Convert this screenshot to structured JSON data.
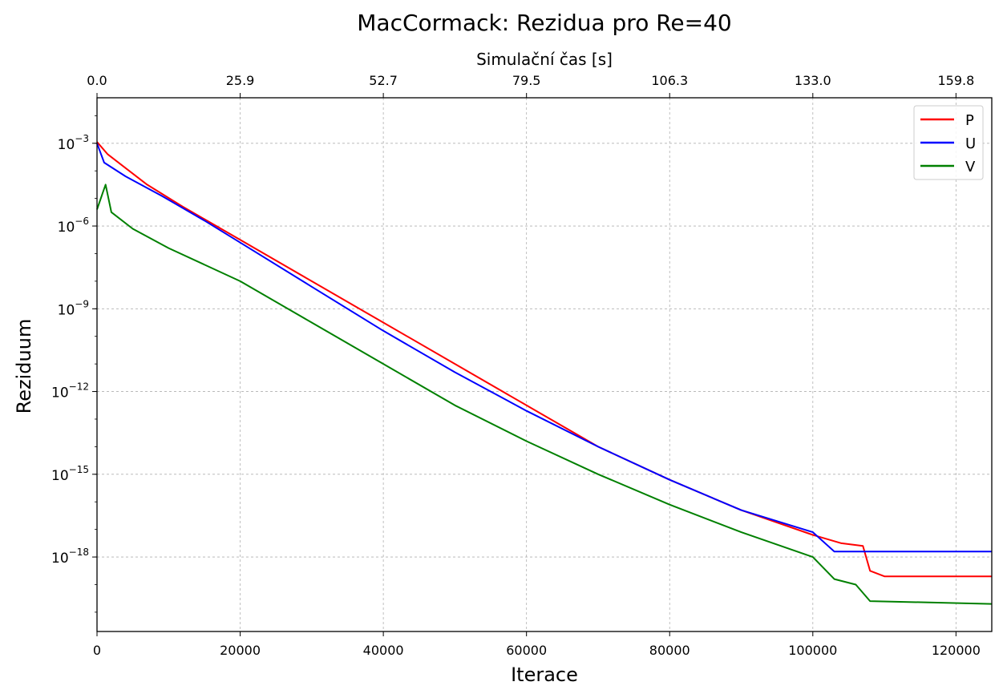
{
  "chart_data": {
    "type": "line",
    "title": "MacCormack: Rezidua pro Re=40",
    "xlabel": "Iterace",
    "ylabel": "Reziduum",
    "top_xlabel": "Simulační čas [s]",
    "xlim": [
      0,
      125000
    ],
    "y_scale": "log",
    "ylim_log10": [
      -20.7,
      -1.35
    ],
    "grid": true,
    "legend_position": "top-right",
    "x_ticks": [
      {
        "value": 0,
        "label": "0"
      },
      {
        "value": 20000,
        "label": "20000"
      },
      {
        "value": 40000,
        "label": "40000"
      },
      {
        "value": 60000,
        "label": "60000"
      },
      {
        "value": 80000,
        "label": "80000"
      },
      {
        "value": 100000,
        "label": "100000"
      },
      {
        "value": 120000,
        "label": "120000"
      }
    ],
    "top_x_ticks": [
      {
        "value": 0,
        "label": "0.0"
      },
      {
        "value": 20000,
        "label": "25.9"
      },
      {
        "value": 40000,
        "label": "52.7"
      },
      {
        "value": 60000,
        "label": "79.5"
      },
      {
        "value": 80000,
        "label": "106.3"
      },
      {
        "value": 100000,
        "label": "133.0"
      },
      {
        "value": 120000,
        "label": "159.8"
      }
    ],
    "y_ticks": [
      {
        "exp": -3,
        "base": "10",
        "sup": "−3"
      },
      {
        "exp": -6,
        "base": "10",
        "sup": "−6"
      },
      {
        "exp": -9,
        "base": "10",
        "sup": "−9"
      },
      {
        "exp": -12,
        "base": "10",
        "sup": "−12"
      },
      {
        "exp": -15,
        "base": "10",
        "sup": "−15"
      },
      {
        "exp": -18,
        "base": "10",
        "sup": "−18"
      }
    ],
    "series": [
      {
        "name": "P",
        "color": "#ff0000",
        "points": [
          [
            0,
            -2.95
          ],
          [
            1500,
            -3.4
          ],
          [
            3500,
            -3.8
          ],
          [
            7000,
            -4.5
          ],
          [
            12000,
            -5.3
          ],
          [
            20000,
            -6.5
          ],
          [
            30000,
            -8.0
          ],
          [
            40000,
            -9.5
          ],
          [
            50000,
            -11.0
          ],
          [
            60000,
            -12.5
          ],
          [
            70000,
            -14.0
          ],
          [
            80000,
            -15.2
          ],
          [
            90000,
            -16.3
          ],
          [
            100000,
            -17.2
          ],
          [
            104000,
            -17.5
          ],
          [
            107000,
            -17.6
          ],
          [
            108000,
            -18.5
          ],
          [
            110000,
            -18.7
          ],
          [
            125000,
            -18.7
          ]
        ]
      },
      {
        "name": "U",
        "color": "#0000ff",
        "points": [
          [
            0,
            -3.0
          ],
          [
            1000,
            -3.7
          ],
          [
            4000,
            -4.2
          ],
          [
            9000,
            -4.9
          ],
          [
            15000,
            -5.8
          ],
          [
            20000,
            -6.6
          ],
          [
            30000,
            -8.2
          ],
          [
            40000,
            -9.8
          ],
          [
            50000,
            -11.3
          ],
          [
            60000,
            -12.7
          ],
          [
            70000,
            -14.0
          ],
          [
            80000,
            -15.2
          ],
          [
            90000,
            -16.3
          ],
          [
            100000,
            -17.1
          ],
          [
            103000,
            -17.8
          ],
          [
            125000,
            -17.8
          ]
        ]
      },
      {
        "name": "V",
        "color": "#008000",
        "points": [
          [
            0,
            -5.4
          ],
          [
            800,
            -4.8
          ],
          [
            1200,
            -4.5
          ],
          [
            2000,
            -5.5
          ],
          [
            5000,
            -6.1
          ],
          [
            10000,
            -6.8
          ],
          [
            20000,
            -8.0
          ],
          [
            30000,
            -9.5
          ],
          [
            40000,
            -11.0
          ],
          [
            50000,
            -12.5
          ],
          [
            60000,
            -13.8
          ],
          [
            70000,
            -15.0
          ],
          [
            80000,
            -16.1
          ],
          [
            90000,
            -17.1
          ],
          [
            100000,
            -18.0
          ],
          [
            103000,
            -18.8
          ],
          [
            106000,
            -19.0
          ],
          [
            108000,
            -19.6
          ],
          [
            125000,
            -19.7
          ]
        ]
      }
    ]
  }
}
